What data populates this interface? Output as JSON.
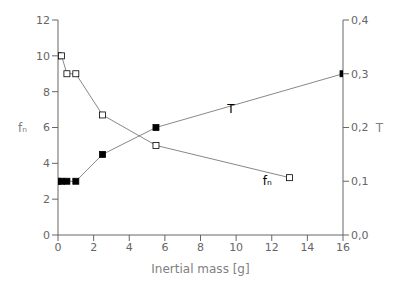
{
  "chart_data": {
    "type": "line",
    "xlabel": "Inertial mass [g]",
    "ylabel": "fₙ",
    "y2label": "T",
    "xlim": [
      0,
      16
    ],
    "xticks": [
      0,
      2,
      4,
      6,
      8,
      10,
      12,
      14,
      16
    ],
    "ylim": [
      0,
      12
    ],
    "yticks": [
      0,
      2,
      4,
      6,
      8,
      10,
      12
    ],
    "y2lim": [
      0.0,
      0.4
    ],
    "y2ticks": [
      {
        "value": 0.0,
        "label": "0,0"
      },
      {
        "value": 0.1,
        "label": "0,1"
      },
      {
        "value": 0.2,
        "label": "0,2"
      },
      {
        "value": 0.3,
        "label": "0,3"
      },
      {
        "value": 0.4,
        "label": "0,4"
      }
    ],
    "grid": false,
    "series": [
      {
        "color": "#888888",
        "marker": "square_open",
        "x": [
          0.0,
          0.2,
          0.5,
          1.0,
          2.5,
          5.5,
          13.0
        ],
        "values": [
          10.0,
          10.0,
          9.0,
          9.0,
          6.7,
          5.0,
          3.2
        ]
      },
      {
        "axis": "y2",
        "color": "#888888",
        "marker": "square",
        "x": [
          0.0,
          0.2,
          0.5,
          1.0,
          2.5,
          5.5,
          16.0
        ],
        "values": [
          0.1,
          0.1,
          0.1,
          0.1,
          0.15,
          0.2,
          0.3
        ]
      }
    ],
    "annotations": [
      {
        "text": "fₙ",
        "x": 11.5,
        "y": 3.0
      },
      {
        "text": "T",
        "x": 9.5,
        "y": 7.0
      }
    ]
  }
}
